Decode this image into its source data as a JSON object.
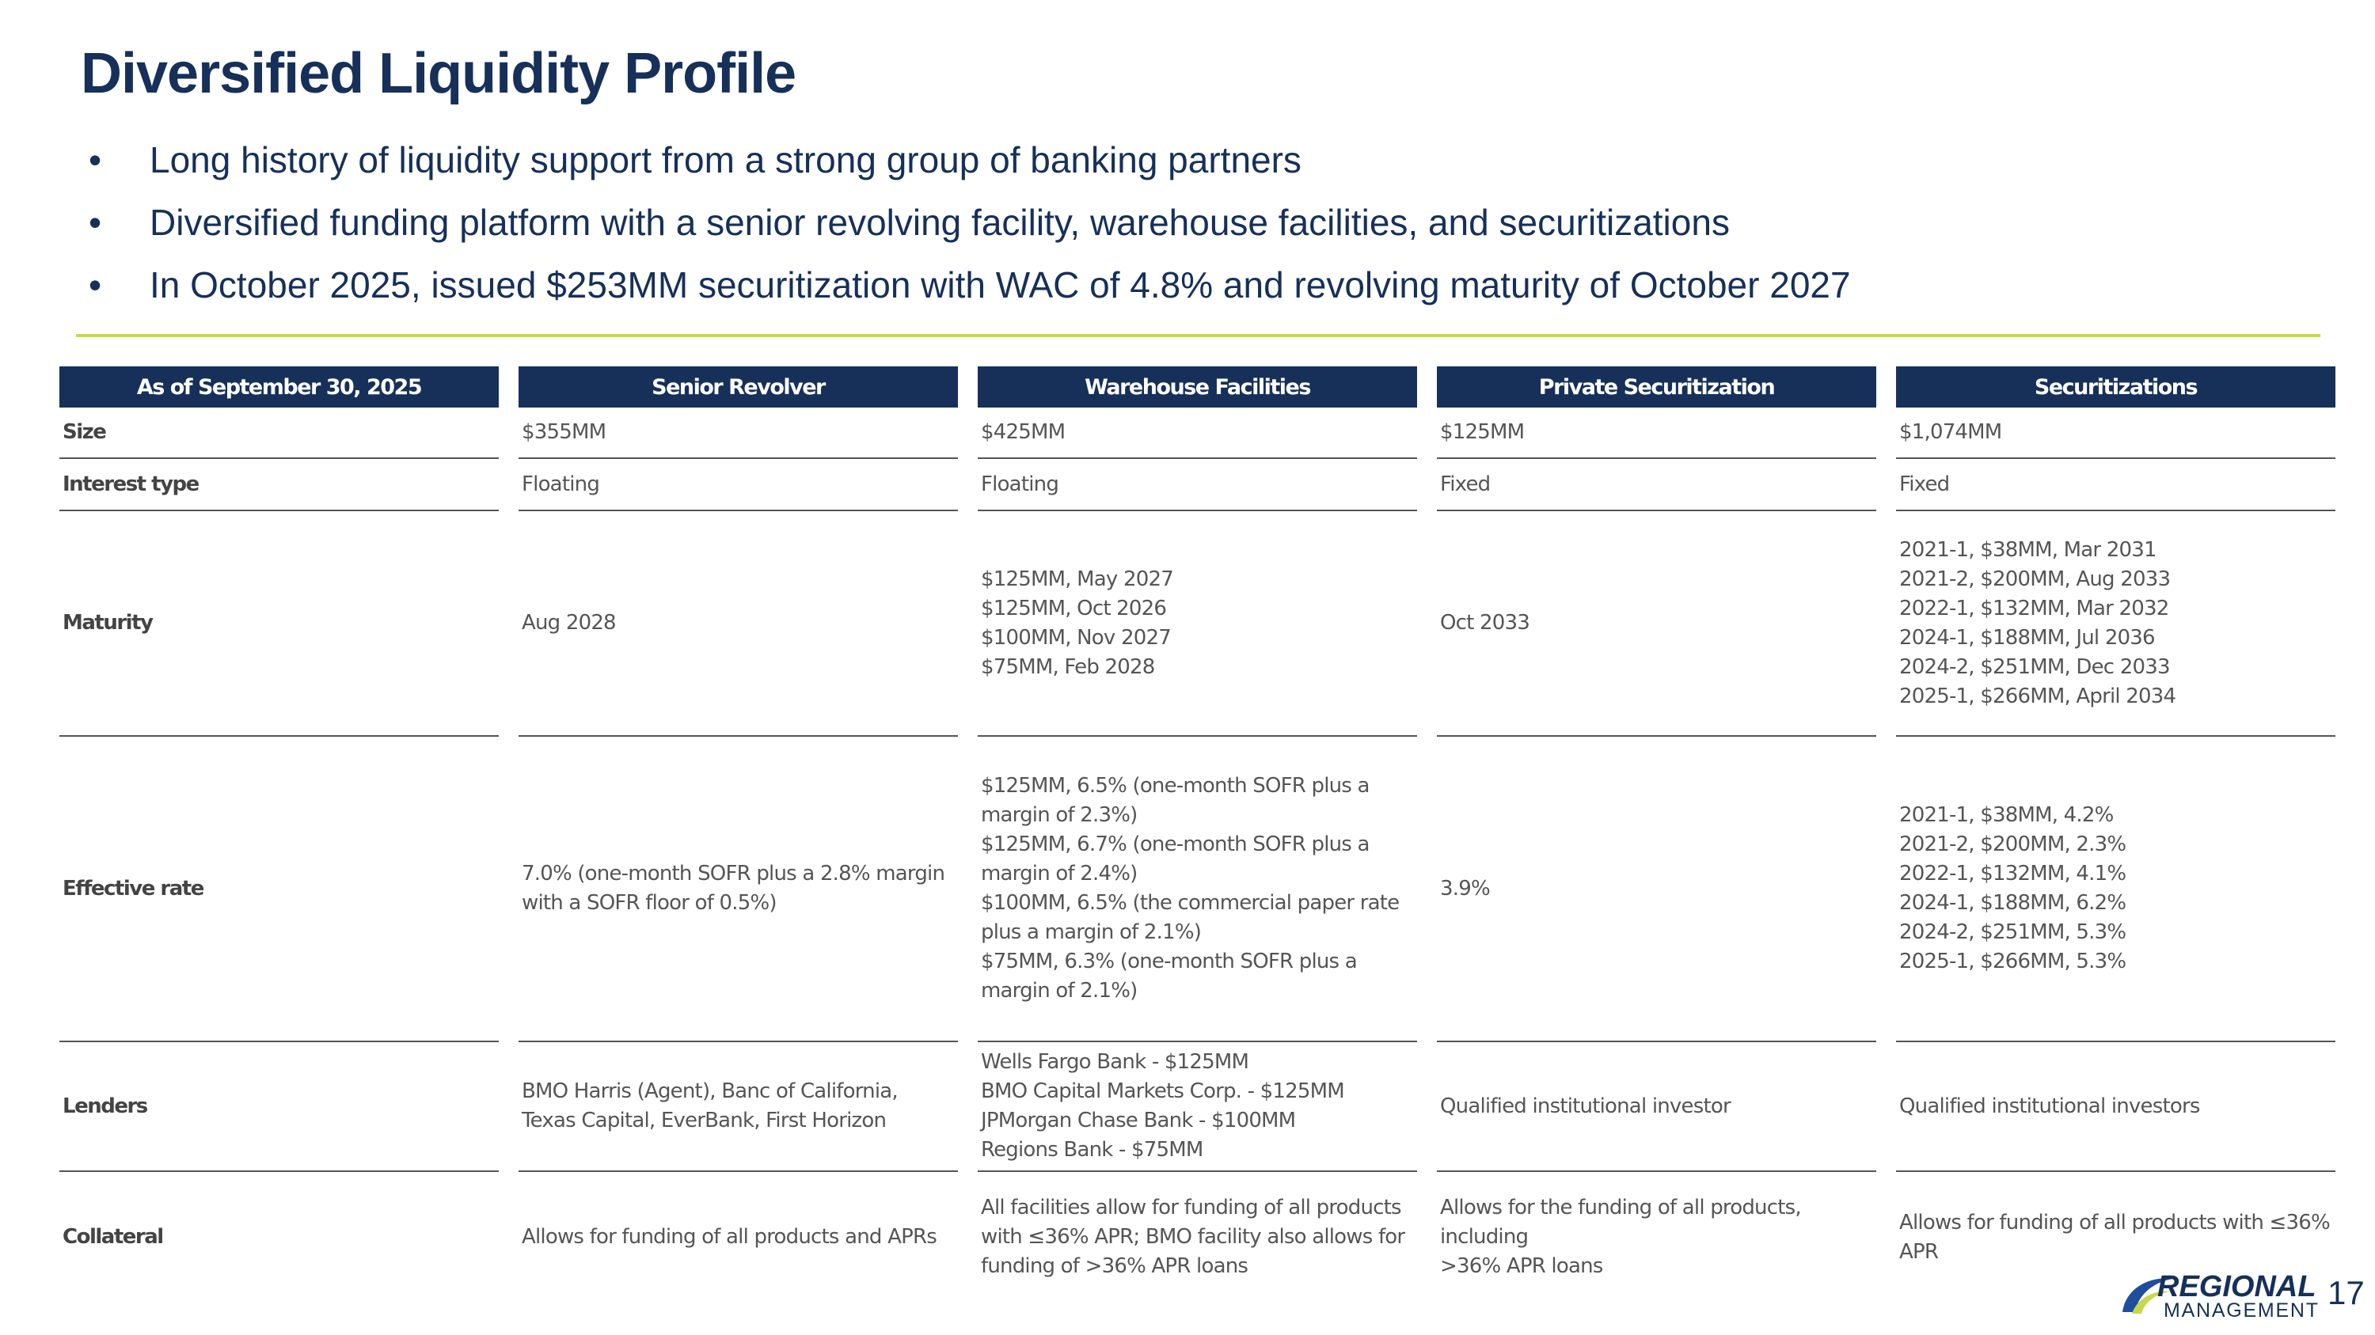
{
  "header": {
    "title": "Diversified Liquidity Profile",
    "bullets": [
      "Long history of liquidity support from a strong group of banking partners",
      "Diversified funding platform with a senior revolving facility, warehouse facilities, and securitizations",
      "In October 2025, issued $253MM securitization with WAC of 4.8% and revolving maturity of October 2027"
    ]
  },
  "table": {
    "columns": [
      "As of September 30, 2025",
      "Senior Revolver",
      "Warehouse Facilities",
      "Private Securitization",
      "Securitizations"
    ],
    "rows": [
      {
        "label": "Size",
        "cells": [
          [
            "$355MM"
          ],
          [
            "$425MM"
          ],
          [
            "$125MM"
          ],
          [
            "$1,074MM"
          ]
        ]
      },
      {
        "label": "Interest type",
        "cells": [
          [
            "Floating"
          ],
          [
            "Floating"
          ],
          [
            "Fixed"
          ],
          [
            "Fixed"
          ]
        ]
      },
      {
        "label": "Maturity",
        "cells": [
          [
            "Aug 2028"
          ],
          [
            "$125MM, May 2027",
            "$125MM, Oct 2026",
            "$100MM, Nov 2027",
            "$75MM, Feb 2028"
          ],
          [
            "Oct 2033"
          ],
          [
            "2021-1, $38MM, Mar 2031",
            "2021-2, $200MM, Aug 2033",
            "2022-1, $132MM, Mar 2032",
            "2024-1, $188MM, Jul 2036",
            "2024-2, $251MM, Dec 2033",
            "2025-1, $266MM, April 2034"
          ]
        ]
      },
      {
        "label": "Effective rate",
        "cells": [
          [
            "7.0% (one-month SOFR plus a 2.8% margin with a SOFR floor of 0.5%)"
          ],
          [
            "$125MM, 6.5% (one-month SOFR plus a margin of 2.3%)",
            "$125MM, 6.7% (one-month SOFR plus a margin of 2.4%)",
            "$100MM, 6.5% (the commercial paper rate plus a margin of 2.1%)",
            "$75MM, 6.3% (one-month SOFR plus a margin of 2.1%)"
          ],
          [
            "3.9%"
          ],
          [
            "2021-1, $38MM, 4.2%",
            "2021-2, $200MM, 2.3%",
            "2022-1, $132MM, 4.1%",
            "2024-1, $188MM, 6.2%",
            "2024-2, $251MM, 5.3%",
            "2025-1, $266MM, 5.3%"
          ]
        ]
      },
      {
        "label": "Lenders",
        "cells": [
          [
            "BMO Harris (Agent), Banc of California, Texas Capital, EverBank, First Horizon"
          ],
          [
            "Wells Fargo Bank - $125MM",
            "BMO Capital Markets Corp. - $125MM",
            "JPMorgan Chase Bank - $100MM",
            "Regions Bank - $75MM"
          ],
          [
            "Qualified institutional investor"
          ],
          [
            "Qualified institutional investors"
          ]
        ]
      },
      {
        "label": "Collateral",
        "cells": [
          [
            "Allows for funding of all products and APRs"
          ],
          [
            "All facilities allow for funding of all products with ≤36% APR; BMO facility also allows for funding of >36% APR loans"
          ],
          [
            "Allows for the funding of all products, including",
            ">36% APR loans"
          ],
          [
            "Allows for funding of all products with ≤36% APR"
          ]
        ]
      }
    ]
  },
  "footer": {
    "logo_top": "REGIONAL",
    "logo_bottom": "MANAGEMENT",
    "page_number": "17"
  }
}
